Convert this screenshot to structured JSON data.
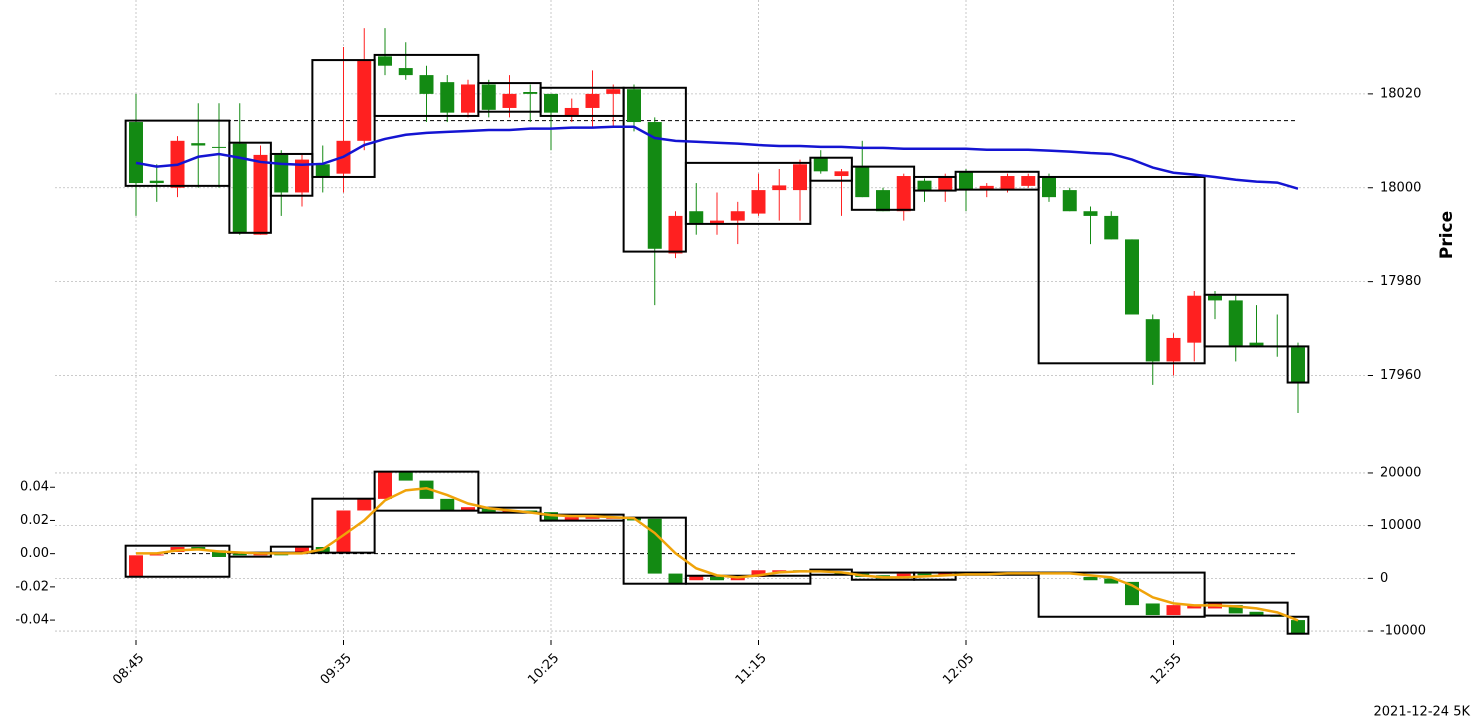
{
  "chart_data": [
    {
      "type": "candlestick",
      "y_label": "Price",
      "up_color": "#ff2020",
      "down_color": "#138a13",
      "categories": [
        "08:45",
        null,
        null,
        null,
        null,
        null,
        null,
        null,
        null,
        null,
        "09:35",
        null,
        null,
        null,
        null,
        null,
        null,
        null,
        null,
        null,
        "10:25",
        null,
        null,
        null,
        null,
        null,
        null,
        null,
        null,
        null,
        "11:15",
        null,
        null,
        null,
        null,
        null,
        null,
        null,
        null,
        null,
        "12:05",
        null,
        null,
        null,
        null,
        null,
        null,
        null,
        null,
        null,
        "12:55",
        null,
        null,
        null,
        null,
        null,
        null
      ],
      "open": [
        18014,
        18001.5,
        18000,
        18009.5,
        18008.7,
        18009.4,
        17990,
        18007,
        17999,
        18005,
        18003,
        18010,
        18028,
        18025.5,
        18024,
        18022.5,
        18016,
        18022,
        18017,
        18020.4,
        18020,
        18015.5,
        18017,
        18020,
        18021,
        18014,
        17986,
        17995,
        17992.5,
        17993,
        17994.5,
        17999.5,
        17999.5,
        18006.5,
        18002.5,
        18004.5,
        17999.5,
        17995,
        18001.5,
        17999.5,
        18003.5,
        17999.5,
        17999.5,
        18000.4,
        18002.5,
        17999.5,
        17995,
        17994,
        17989,
        17972,
        17963,
        17967,
        17977,
        17976,
        17967,
        17966.4,
        17966
      ],
      "high": [
        18020,
        18005,
        18011,
        18018,
        18018,
        18018,
        18009,
        18008,
        18007,
        18009,
        18030,
        18034,
        18034,
        18031,
        18026,
        18024,
        18023,
        18023,
        18024,
        18022,
        18020,
        18019,
        18025,
        18022,
        18022,
        18015,
        17995,
        18001,
        17999,
        17997,
        18003,
        18004,
        18006,
        18008,
        18004,
        18010,
        18000,
        18003,
        18002,
        18003,
        18004,
        18001,
        18003,
        18003,
        18003,
        18000,
        17996,
        17995,
        17989,
        17973,
        17969,
        17978,
        17978,
        17977,
        17975,
        17973,
        17967
      ],
      "low": [
        17994,
        17997,
        17998,
        18000,
        18000,
        17990,
        17990,
        17994,
        17996,
        17999,
        17999,
        18008,
        18024,
        18023,
        18014,
        18014,
        18015,
        18015,
        18015,
        18014,
        18008,
        18014,
        18013,
        18013,
        18012,
        17975,
        17985,
        17990,
        17990,
        17988,
        17994,
        17993,
        17993,
        18003,
        17994,
        17998,
        17995,
        17993,
        17997,
        17997,
        17995,
        17998,
        17999,
        18000,
        17997,
        17995,
        17988,
        17989,
        17973,
        17958,
        17960,
        17963,
        17972,
        17963,
        17966,
        17964,
        17952
      ],
      "close": [
        18001,
        18001,
        18010,
        18009,
        18008.5,
        17990.4,
        18007,
        17999,
        18006,
        18002.5,
        18010,
        18027,
        18026,
        18024,
        18020,
        18016,
        18022,
        18016.6,
        18020,
        18020,
        18016,
        18017,
        18020,
        18021,
        18014,
        17987,
        17994,
        17992.5,
        17993,
        17995,
        17999.5,
        18000.5,
        18005,
        18003.5,
        18003.5,
        17998,
        17995,
        18002.5,
        17999.5,
        18002.5,
        17999.5,
        18000.4,
        18002.5,
        18002.5,
        17998,
        17995,
        17994,
        17989,
        17973,
        17963,
        17968,
        17977,
        17976,
        17966.4,
        17966.4,
        17966,
        17958.5
      ],
      "series": [
        {
          "color": "#1414d2",
          "values": [
            18005.3,
            18004.5,
            18004.9,
            18006.6,
            18007.2,
            18006.4,
            18005.5,
            18005.1,
            18004.9,
            18005.1,
            18006.6,
            18009.1,
            18010.4,
            18011.3,
            18011.7,
            18011.9,
            18012.1,
            18012.3,
            18012.3,
            18012.6,
            18012.6,
            18012.8,
            18012.8,
            18013,
            18013,
            18010.6,
            18010,
            18009.8,
            18009.6,
            18009.4,
            18009.1,
            18008.9,
            18008.9,
            18008.7,
            18008.7,
            18008.5,
            18008.5,
            18008.3,
            18008.3,
            18008.3,
            18008.3,
            18008.1,
            18008.1,
            18008.1,
            18007.9,
            18007.7,
            18007.4,
            18007.2,
            18006,
            18004.3,
            18003.2,
            18002.8,
            18002.3,
            18001.7,
            18001.3,
            18001.1,
            17999.8
          ]
        }
      ],
      "hline": 18014.3,
      "boxes": [
        {
          "bars": 5,
          "high": 18014.3,
          "low": 18000.4
        },
        {
          "bars": 2,
          "high": 18009.6,
          "low": 17990.4
        },
        {
          "bars": 2,
          "high": 18007.2,
          "low": 17998.3
        },
        {
          "bars": 3,
          "high": 18027.2,
          "low": 18002.3
        },
        {
          "bars": 5,
          "high": 18028.3,
          "low": 18015.3
        },
        {
          "bars": 3,
          "high": 18022.3,
          "low": 18016.2
        },
        {
          "bars": 4,
          "high": 18021.3,
          "low": 18015.3
        },
        {
          "bars": 3,
          "high": 18021.3,
          "low": 17986.4
        },
        {
          "bars": 6,
          "high": 18005.3,
          "low": 17992.3
        },
        {
          "bars": 2,
          "high": 18006.4,
          "low": 18001.5
        },
        {
          "bars": 3,
          "high": 18004.5,
          "low": 17995.3
        },
        {
          "bars": 2,
          "high": 18002.3,
          "low": 17999.4
        },
        {
          "bars": 4,
          "high": 18003.4,
          "low": 17999.6
        },
        {
          "bars": 8,
          "high": 18002.3,
          "low": 17962.6
        },
        {
          "bars": 4,
          "high": 17977.2,
          "low": 17966.2
        },
        {
          "bars": 1,
          "high": 17966.2,
          "low": 17958.5
        }
      ],
      "ylim": [
        17942,
        18040
      ],
      "yticks": [
        17960,
        17980,
        18000,
        18020
      ],
      "grid": true
    },
    {
      "type": "candlestick",
      "open": [
        -0.014,
        -0.001,
        0.001,
        0.004,
        0.002,
        0,
        -0.001,
        0,
        0,
        0.004,
        0.001,
        0.026,
        0.033,
        0.049,
        0.044,
        0.033,
        0.026,
        0.027,
        0.025,
        0.026,
        0.025,
        0.02,
        0.021,
        0.021,
        0.022,
        0.021,
        -0.012,
        -0.016,
        -0.014,
        -0.016,
        -0.014,
        -0.011,
        -0.01,
        -0.01,
        -0.011,
        -0.012,
        -0.013,
        -0.014,
        -0.012,
        -0.013,
        -0.011,
        -0.012,
        -0.011,
        -0.012,
        -0.011,
        -0.011,
        -0.014,
        -0.015,
        -0.017,
        -0.03,
        -0.037,
        -0.033,
        -0.033,
        -0.031,
        -0.035,
        -0.037,
        -0.04
      ],
      "close": [
        -0.001,
        -0.0005,
        0.004,
        0.002,
        -0.002,
        -0.001,
        0,
        -0.001,
        0.004,
        0.001,
        0.026,
        0.033,
        0.049,
        0.044,
        0.033,
        0.026,
        0.028,
        0.025,
        0.026,
        0.025,
        0.02,
        0.022,
        0.022,
        0.022,
        0.02,
        -0.012,
        -0.018,
        -0.013,
        -0.016,
        -0.014,
        -0.01,
        -0.01,
        -0.011,
        -0.011,
        -0.013,
        -0.014,
        -0.015,
        -0.012,
        -0.013,
        -0.011,
        -0.012,
        -0.011,
        -0.012,
        -0.011,
        -0.012,
        -0.012,
        -0.016,
        -0.018,
        -0.031,
        -0.037,
        -0.031,
        -0.031,
        -0.03,
        -0.036,
        -0.037,
        -0.038,
        -0.048
      ],
      "series": [
        {
          "color": "#f0a30a",
          "axis": "y2",
          "values": [
            4750,
            4750,
            5300,
            5500,
            5100,
            4900,
            4750,
            4750,
            4750,
            5500,
            8200,
            11000,
            14800,
            16700,
            17100,
            15800,
            14200,
            13300,
            12900,
            12500,
            12000,
            11800,
            11800,
            11600,
            11400,
            8600,
            4750,
            1900,
            570,
            190,
            570,
            1140,
            1330,
            1330,
            1140,
            570,
            190,
            190,
            380,
            570,
            760,
            760,
            950,
            950,
            950,
            950,
            570,
            190,
            -1330,
            -3610,
            -4750,
            -5130,
            -5130,
            -5320,
            -5700,
            -6460,
            -7980
          ]
        }
      ],
      "hline": 0,
      "boxes": [
        {
          "bars": 5,
          "high": 0.0048,
          "low": -0.0139
        },
        {
          "bars": 2,
          "high": 0.0006,
          "low": -0.0018
        },
        {
          "bars": 2,
          "high": 0.0042,
          "low": 0.0006
        },
        {
          "bars": 3,
          "high": 0.0331,
          "low": 0.0006
        },
        {
          "bars": 5,
          "high": 0.0494,
          "low": 0.0259
        },
        {
          "bars": 3,
          "high": 0.0277,
          "low": 0.0247
        },
        {
          "bars": 4,
          "high": 0.0235,
          "low": 0.0199
        },
        {
          "bars": 3,
          "high": 0.0217,
          "low": -0.0181
        },
        {
          "bars": 6,
          "high": -0.0133,
          "low": -0.0181
        },
        {
          "bars": 2,
          "high": -0.0096,
          "low": -0.0127
        },
        {
          "bars": 3,
          "high": -0.0114,
          "low": -0.0157
        },
        {
          "bars": 2,
          "high": -0.0114,
          "low": -0.0157
        },
        {
          "bars": 4,
          "high": -0.0114,
          "low": -0.0127
        },
        {
          "bars": 8,
          "high": -0.0114,
          "low": -0.038
        },
        {
          "bars": 4,
          "high": -0.0295,
          "low": -0.0373
        },
        {
          "bars": 1,
          "high": -0.038,
          "low": -0.0482
        }
      ],
      "ylim": [
        -0.052,
        0.054
      ],
      "yticks": [
        -0.04,
        -0.02,
        {
          "value": 0,
          "label": "0.00"
        },
        0.02,
        0.04
      ],
      "y2lim": [
        -11700,
        21700
      ],
      "y2ticks": [
        -10000,
        0,
        10000,
        20000
      ],
      "grid": true
    }
  ],
  "footer": "2021-12-24 5K"
}
